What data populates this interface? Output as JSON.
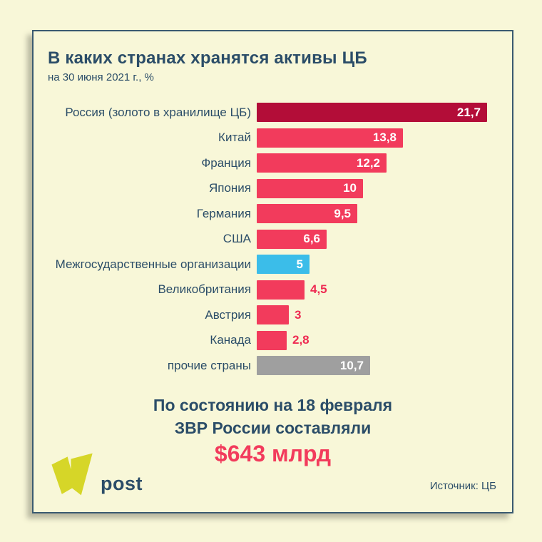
{
  "title": "В каких странах хранятся активы ЦБ",
  "subtitle": "на 30 июня 2021 г., %",
  "chart_data": {
    "type": "bar",
    "orientation": "horizontal",
    "unit": "%",
    "title": "В каких странах хранятся активы ЦБ",
    "subtitle": "на 30 июня 2021 г., %",
    "xlim": [
      0,
      22.5
    ],
    "grid": false,
    "categories": [
      "Россия (золото в хранилище ЦБ)",
      "Китай",
      "Франция",
      "Япония",
      "Германия",
      "США",
      "Межгосударственные организации",
      "Великобритания",
      "Австрия",
      "Канада",
      "прочие страны"
    ],
    "values": [
      21.7,
      13.8,
      12.2,
      10,
      9.5,
      6.6,
      5,
      4.5,
      3,
      2.8,
      10.7
    ],
    "value_labels": [
      "21,7",
      "13,8",
      "12,2",
      "10",
      "9,5",
      "6,6",
      "5",
      "4,5",
      "3",
      "2,8",
      "10,7"
    ],
    "bar_color_keys": [
      "darkred",
      "red",
      "red",
      "red",
      "red",
      "red",
      "blue",
      "red",
      "red",
      "red",
      "gray"
    ],
    "value_label_inside": [
      true,
      true,
      true,
      true,
      true,
      true,
      true,
      false,
      false,
      false,
      true
    ]
  },
  "colors": {
    "darkred": "#b30d38",
    "red": "#f23b5c",
    "blue": "#3bbde9",
    "gray": "#9f9f9f",
    "navy": "#2b4d68",
    "cream": "#f8f7d8",
    "value_outside": "#ee2b52",
    "logo_yellow": "#d6d628"
  },
  "footer": {
    "note_line1": "По состоянию на 18 февраля",
    "note_line2": "ЗВР России составляли",
    "amount": "$643 млрд",
    "source": "Источник: ЦБ"
  },
  "logo": {
    "text": "post",
    "icon": "v-ribbon-icon"
  }
}
